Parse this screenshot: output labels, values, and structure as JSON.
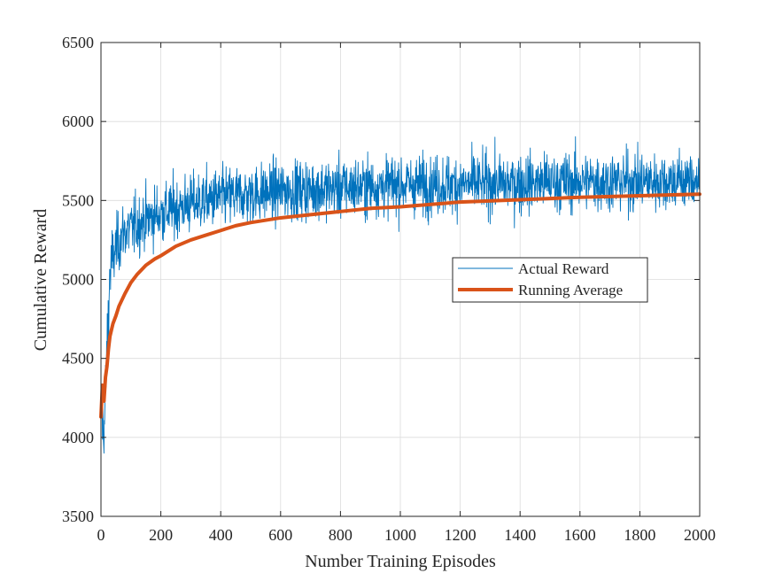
{
  "chart_data": {
    "type": "line",
    "title": "",
    "xlabel": "Number Training Episodes",
    "ylabel": "Cumulative Reward",
    "xlim": [
      0,
      2000
    ],
    "ylim": [
      3500,
      6500
    ],
    "xticks": [
      0,
      200,
      400,
      600,
      800,
      1000,
      1200,
      1400,
      1600,
      1800,
      2000
    ],
    "yticks": [
      3500,
      4000,
      4500,
      5000,
      5500,
      6000,
      6500
    ],
    "grid": true,
    "legend_position": "center-right",
    "series": [
      {
        "name": "Actual Reward",
        "color": "#0072BD",
        "style": "thin-noisy-line",
        "trend": [
          [
            0,
            4200
          ],
          [
            10,
            4000
          ],
          [
            20,
            4550
          ],
          [
            30,
            5050
          ],
          [
            50,
            5200
          ],
          [
            75,
            5300
          ],
          [
            100,
            5320
          ],
          [
            150,
            5380
          ],
          [
            200,
            5420
          ],
          [
            300,
            5480
          ],
          [
            400,
            5520
          ],
          [
            600,
            5560
          ],
          [
            800,
            5580
          ],
          [
            1000,
            5600
          ],
          [
            1200,
            5600
          ],
          [
            1400,
            5610
          ],
          [
            1600,
            5620
          ],
          [
            1800,
            5620
          ],
          [
            2000,
            5630
          ]
        ],
        "noise_std": 170,
        "min_observed": 3900,
        "max_observed": 6180
      },
      {
        "name": "Running Average",
        "color": "#D95319",
        "style": "thick-line",
        "x": [
          0,
          5,
          10,
          15,
          20,
          25,
          30,
          40,
          50,
          60,
          70,
          80,
          100,
          120,
          150,
          180,
          200,
          250,
          300,
          350,
          400,
          450,
          500,
          600,
          700,
          800,
          900,
          1000,
          1200,
          1400,
          1600,
          1800,
          2000
        ],
        "y": [
          4130,
          4330,
          4230,
          4380,
          4450,
          4560,
          4640,
          4720,
          4770,
          4830,
          4870,
          4910,
          4980,
          5030,
          5090,
          5130,
          5150,
          5210,
          5250,
          5280,
          5310,
          5340,
          5360,
          5390,
          5410,
          5430,
          5450,
          5460,
          5490,
          5505,
          5520,
          5530,
          5540
        ]
      }
    ]
  }
}
